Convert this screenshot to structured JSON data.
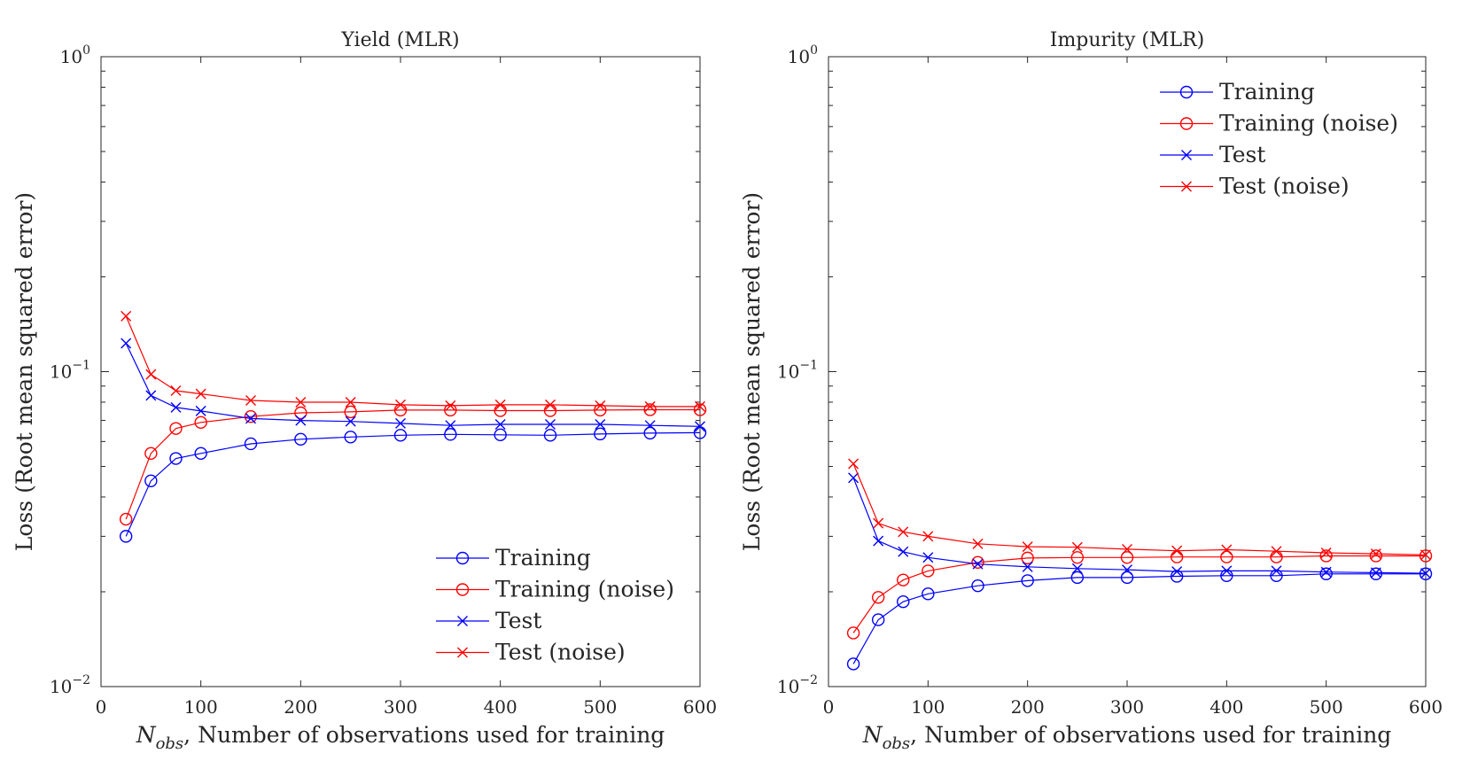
{
  "chart_data": [
    {
      "type": "line",
      "title": "Yield (MLR)",
      "xlabel_var": "N",
      "xlabel_sub": "obs",
      "xlabel_rest": ", Number of observations used for training",
      "ylabel": "Loss (Root mean squared error)",
      "xlim": [
        0,
        600
      ],
      "ylim": [
        0.01,
        1
      ],
      "yscale": "log",
      "grid": false,
      "legend_position": "bottom-right",
      "x_ticks": [
        "0",
        "100",
        "200",
        "300",
        "400",
        "500",
        "600"
      ],
      "y_ticks": [
        {
          "base": "10",
          "exp": "0"
        },
        {
          "base": "10",
          "exp": "−1"
        },
        {
          "base": "10",
          "exp": "−2"
        }
      ],
      "x": [
        25,
        50,
        75,
        100,
        150,
        200,
        250,
        300,
        350,
        400,
        450,
        500,
        550,
        600
      ],
      "series": [
        {
          "name": "Training",
          "color": "#0000ff",
          "marker": "circle",
          "values": [
            0.03,
            0.045,
            0.053,
            0.055,
            0.059,
            0.061,
            0.062,
            0.0628,
            0.0632,
            0.063,
            0.0628,
            0.0634,
            0.0638,
            0.064
          ]
        },
        {
          "name": "Training (noise)",
          "color": "#ff0000",
          "marker": "circle",
          "values": [
            0.034,
            0.055,
            0.066,
            0.069,
            0.072,
            0.074,
            0.0745,
            0.0755,
            0.0755,
            0.0752,
            0.0752,
            0.0755,
            0.0757,
            0.0757
          ]
        },
        {
          "name": "Test",
          "color": "#0000ff",
          "marker": "x",
          "values": [
            0.123,
            0.084,
            0.077,
            0.075,
            0.071,
            0.07,
            0.0695,
            0.0685,
            0.0675,
            0.068,
            0.068,
            0.068,
            0.0675,
            0.067
          ]
        },
        {
          "name": "Test (noise)",
          "color": "#ff0000",
          "marker": "x",
          "values": [
            0.15,
            0.098,
            0.087,
            0.085,
            0.081,
            0.08,
            0.08,
            0.0785,
            0.078,
            0.0785,
            0.0785,
            0.078,
            0.0775,
            0.0775
          ]
        }
      ]
    },
    {
      "type": "line",
      "title": "Impurity (MLR)",
      "xlabel_var": "N",
      "xlabel_sub": "obs",
      "xlabel_rest": ", Number of observations used for training",
      "ylabel": "Loss (Root mean squared error)",
      "xlim": [
        0,
        600
      ],
      "ylim": [
        0.01,
        1
      ],
      "yscale": "log",
      "grid": false,
      "legend_position": "top-right",
      "x_ticks": [
        "0",
        "100",
        "200",
        "300",
        "400",
        "500",
        "600"
      ],
      "y_ticks": [
        {
          "base": "10",
          "exp": "0"
        },
        {
          "base": "10",
          "exp": "−1"
        },
        {
          "base": "10",
          "exp": "−2"
        }
      ],
      "x": [
        25,
        50,
        75,
        100,
        150,
        200,
        250,
        300,
        350,
        400,
        450,
        500,
        550,
        600
      ],
      "series": [
        {
          "name": "Training",
          "color": "#0000ff",
          "marker": "circle",
          "values": [
            0.0118,
            0.0163,
            0.0186,
            0.0197,
            0.0209,
            0.0217,
            0.0222,
            0.0222,
            0.0224,
            0.0225,
            0.0225,
            0.0228,
            0.0228,
            0.0228
          ]
        },
        {
          "name": "Training (noise)",
          "color": "#ff0000",
          "marker": "circle",
          "values": [
            0.0148,
            0.0192,
            0.0218,
            0.0233,
            0.0248,
            0.0256,
            0.0257,
            0.0257,
            0.0258,
            0.0258,
            0.0258,
            0.026,
            0.026,
            0.026
          ]
        },
        {
          "name": "Test",
          "color": "#0000ff",
          "marker": "x",
          "values": [
            0.046,
            0.029,
            0.0268,
            0.0257,
            0.0245,
            0.024,
            0.0237,
            0.0235,
            0.0232,
            0.0233,
            0.0233,
            0.0231,
            0.023,
            0.0229
          ]
        },
        {
          "name": "Test (noise)",
          "color": "#ff0000",
          "marker": "x",
          "values": [
            0.051,
            0.033,
            0.031,
            0.03,
            0.0284,
            0.0278,
            0.0277,
            0.0273,
            0.027,
            0.0272,
            0.0269,
            0.0266,
            0.0264,
            0.0262
          ]
        }
      ]
    }
  ]
}
